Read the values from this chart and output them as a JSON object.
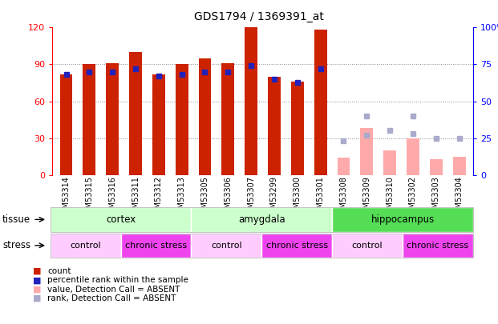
{
  "title": "GDS1794 / 1369391_at",
  "samples": [
    "GSM53314",
    "GSM53315",
    "GSM53316",
    "GSM53311",
    "GSM53312",
    "GSM53313",
    "GSM53305",
    "GSM53306",
    "GSM53307",
    "GSM53299",
    "GSM53300",
    "GSM53301",
    "GSM53308",
    "GSM53309",
    "GSM53310",
    "GSM53302",
    "GSM53303",
    "GSM53304"
  ],
  "count_values": [
    82,
    90,
    91,
    100,
    82,
    90,
    95,
    91,
    120,
    80,
    76,
    118,
    null,
    null,
    null,
    null,
    null,
    null
  ],
  "rank_values": [
    68,
    70,
    70,
    72,
    67,
    68,
    70,
    70,
    74,
    65,
    63,
    72,
    null,
    null,
    null,
    null,
    null,
    null
  ],
  "absent_count": [
    null,
    null,
    null,
    null,
    null,
    null,
    null,
    null,
    null,
    null,
    null,
    null,
    14,
    38,
    20,
    30,
    13,
    15
  ],
  "absent_rank": [
    null,
    null,
    null,
    null,
    null,
    null,
    null,
    null,
    null,
    null,
    null,
    null,
    23,
    27,
    30,
    28,
    25,
    25
  ],
  "absent_rank2": [
    null,
    null,
    null,
    null,
    null,
    null,
    null,
    null,
    null,
    null,
    null,
    null,
    null,
    40,
    null,
    40,
    null,
    null
  ],
  "tissue_groups": [
    {
      "label": "cortex",
      "start": 0,
      "end": 6,
      "color": "#ccffcc"
    },
    {
      "label": "amygdala",
      "start": 6,
      "end": 12,
      "color": "#ccffcc"
    },
    {
      "label": "hippocampus",
      "start": 12,
      "end": 18,
      "color": "#55dd55"
    }
  ],
  "stress_groups": [
    {
      "label": "control",
      "start": 0,
      "end": 3,
      "color": "#ffccff"
    },
    {
      "label": "chronic stress",
      "start": 3,
      "end": 6,
      "color": "#ee44ee"
    },
    {
      "label": "control",
      "start": 6,
      "end": 9,
      "color": "#ffccff"
    },
    {
      "label": "chronic stress",
      "start": 9,
      "end": 12,
      "color": "#ee44ee"
    },
    {
      "label": "control",
      "start": 12,
      "end": 15,
      "color": "#ffccff"
    },
    {
      "label": "chronic stress",
      "start": 15,
      "end": 18,
      "color": "#ee44ee"
    }
  ],
  "bar_color_present": "#cc2200",
  "bar_color_absent": "#ffaaaa",
  "rank_color_present": "#2222bb",
  "rank_color_absent": "#aaaacc",
  "ylim_left": [
    0,
    120
  ],
  "ylim_right": [
    0,
    100
  ],
  "yticks_left": [
    0,
    30,
    60,
    90,
    120
  ],
  "yticks_right": [
    0,
    25,
    50,
    75,
    100
  ],
  "grid_lines": [
    30,
    60,
    90
  ],
  "plot_bg": "#ffffff",
  "xtick_bg": "#dddddd"
}
